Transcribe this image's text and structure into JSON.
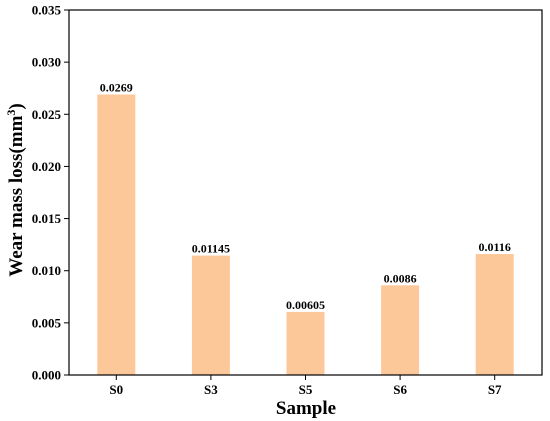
{
  "chart_data": {
    "type": "bar",
    "categories": [
      "S0",
      "S3",
      "S5",
      "S6",
      "S7"
    ],
    "values": [
      0.0269,
      0.01145,
      0.00605,
      0.0086,
      0.0116
    ],
    "data_labels": [
      "0.0269",
      "0.01145",
      "0.00605",
      "0.0086",
      "0.0116"
    ],
    "xlabel": "Sample",
    "ylabel_main": "Wear mass loss(mm",
    "ylabel_sup": "3",
    "ylabel_end": ")",
    "ylim": [
      0,
      0.035
    ],
    "yticks": [
      "0.000",
      "0.005",
      "0.010",
      "0.015",
      "0.020",
      "0.025",
      "0.030",
      "0.035"
    ],
    "grid": false,
    "bar_color": "#fdc899",
    "axis_color": "#000000"
  }
}
